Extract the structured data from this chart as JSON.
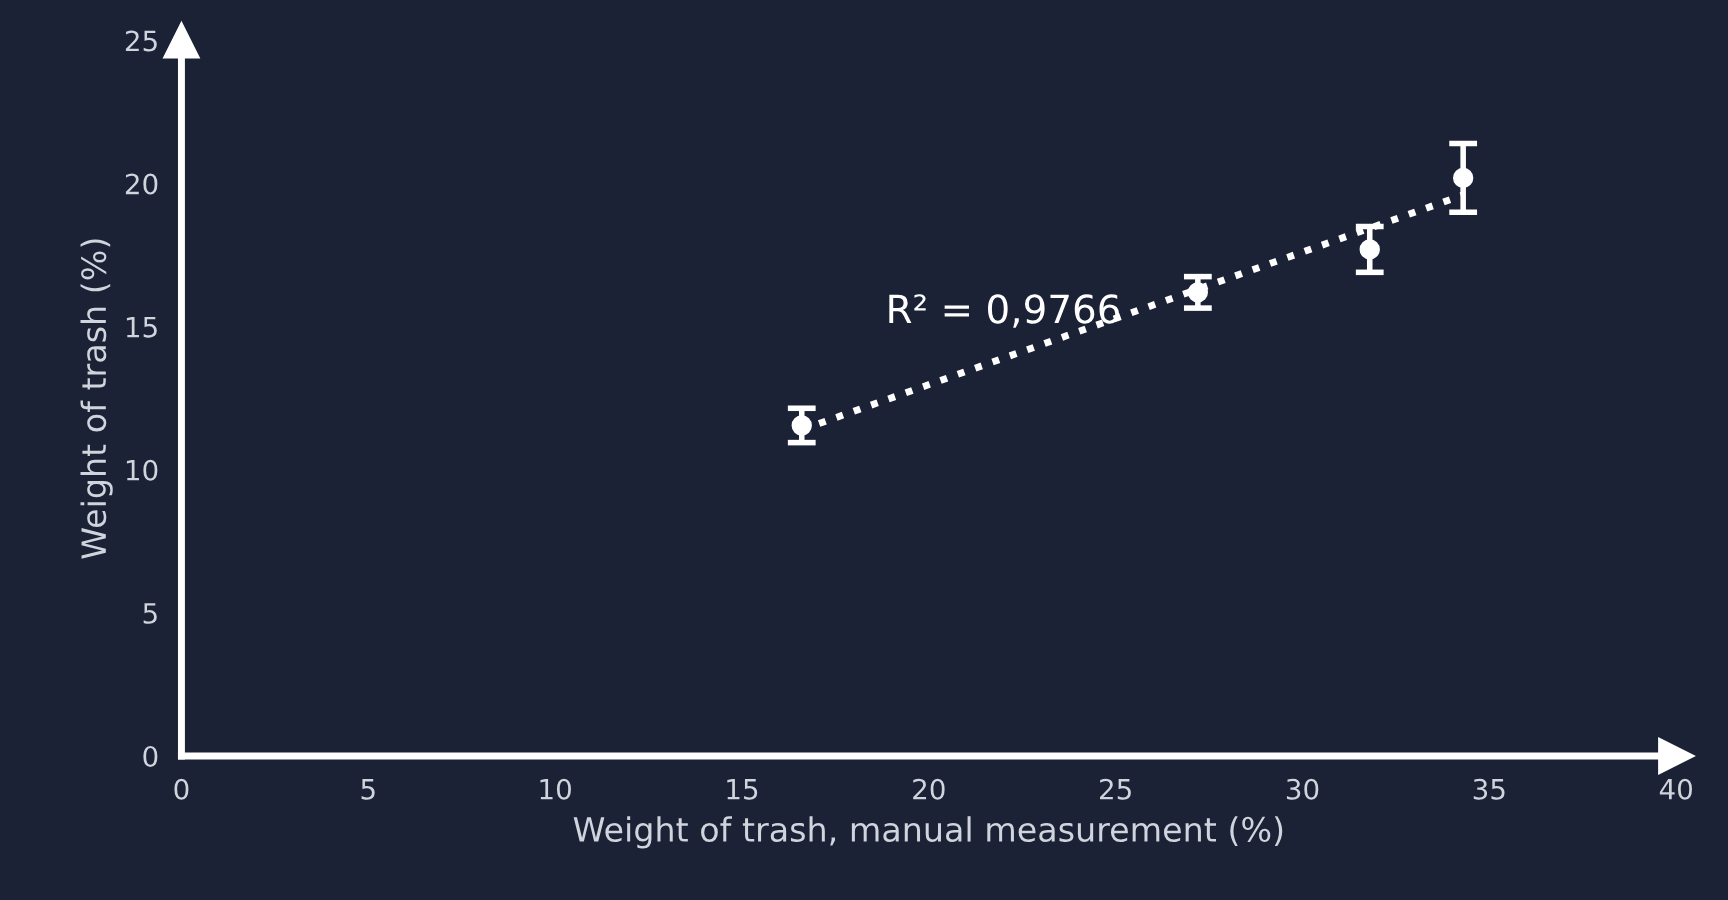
{
  "chart_data": {
    "type": "scatter",
    "xlabel": "Weight of trash, manual measurement (%)",
    "ylabel": "Weight of trash (%)",
    "xlim": [
      0,
      40
    ],
    "xticks": [
      0,
      5,
      10,
      15,
      20,
      25,
      30,
      35,
      40
    ],
    "ylim": [
      0,
      25
    ],
    "yticks": [
      0,
      5,
      10,
      15,
      20,
      25
    ],
    "grid": false,
    "series": [
      {
        "marker": "circle",
        "color": "#ffffff",
        "x": [
          16.6,
          27.2,
          31.8,
          34.3
        ],
        "values": [
          11.55,
          16.2,
          17.7,
          20.2
        ],
        "errors": [
          0.6,
          0.55,
          0.8,
          1.2
        ]
      },
      {
        "type": "line",
        "color": "#ffffff",
        "line_style": "dotted",
        "x": [
          16.6,
          34.3
        ],
        "values": [
          11.4,
          19.6
        ]
      }
    ],
    "annotations": [
      "R² = 0,9766"
    ]
  }
}
